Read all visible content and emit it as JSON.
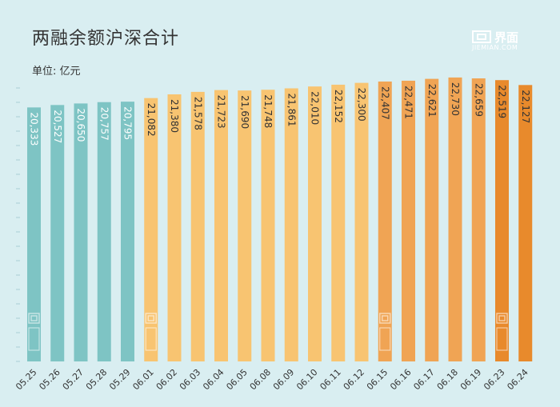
{
  "brand": {
    "name_cn": "界面",
    "name_en": "JIEMIAN.COM"
  },
  "chart_data": {
    "type": "bar",
    "title": "两融余额沪深合计",
    "unit": "单位: 亿元",
    "categories": [
      "05.25",
      "05.26",
      "05.27",
      "05.28",
      "05.29",
      "06.01",
      "06.02",
      "06.03",
      "06.04",
      "06.05",
      "06.08",
      "06.09",
      "06.10",
      "06.11",
      "06.12",
      "06.15",
      "06.16",
      "06.17",
      "06.18",
      "06.19",
      "06.23",
      "06.24"
    ],
    "values": [
      20333,
      20527,
      20650,
      20757,
      20795,
      21082,
      21380,
      21578,
      21723,
      21690,
      21748,
      21861,
      22010,
      22152,
      22300,
      22407,
      22471,
      22621,
      22730,
      22659,
      22519,
      22127
    ],
    "value_labels": [
      "20,333",
      "20,527",
      "20,650",
      "20,757",
      "20,795",
      "21,082",
      "21,380",
      "21,578",
      "21,723",
      "21,690",
      "21,748",
      "21,861",
      "22,010",
      "22,152",
      "22,300",
      "22,407",
      "22,471",
      "22,621",
      "22,730",
      "22,659",
      "22,519",
      "22,127"
    ],
    "colors": [
      "#7ec4c4",
      "#7ec4c4",
      "#7ec4c4",
      "#7ec4c4",
      "#7ec4c4",
      "#f8c471",
      "#f8c471",
      "#f8c471",
      "#f8c471",
      "#f8c471",
      "#f8c471",
      "#f8c471",
      "#f8c471",
      "#f8c471",
      "#f8c471",
      "#f0a454",
      "#f0a454",
      "#f0a454",
      "#f0a454",
      "#f0a454",
      "#e88a2c",
      "#e88a2c"
    ],
    "ylim": [
      0,
      23300
    ],
    "grid": false
  }
}
